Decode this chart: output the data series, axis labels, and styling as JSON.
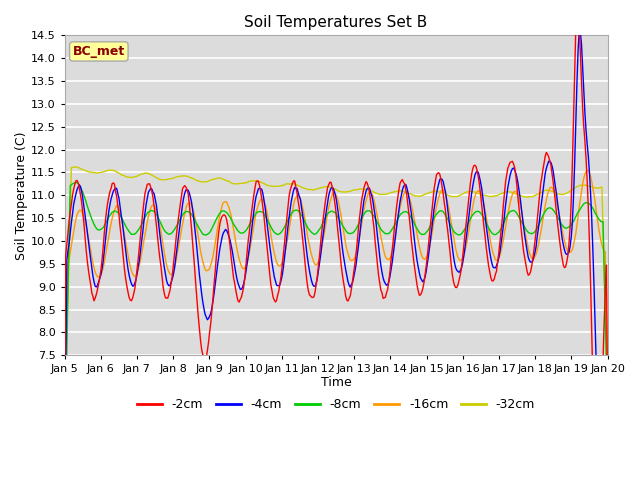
{
  "title": "Soil Temperatures Set B",
  "xlabel": "Time",
  "ylabel": "Soil Temperature (C)",
  "ylim": [
    7.5,
    14.5
  ],
  "annotation": "BC_met",
  "colors": {
    "-2cm": "#ff0000",
    "-4cm": "#0000ff",
    "-8cm": "#00cc00",
    "-16cm": "#ff9900",
    "-32cm": "#cccc00"
  },
  "legend_labels": [
    "-2cm",
    "-4cm",
    "-8cm",
    "-16cm",
    "-32cm"
  ],
  "plot_bg_color": "#dcdcdc",
  "grid_color": "#ffffff",
  "xtick_positions": [
    5,
    6,
    7,
    8,
    9,
    10,
    11,
    12,
    13,
    14,
    15,
    16,
    17,
    18,
    19,
    20
  ],
  "xtick_labels": [
    "Jan 5",
    "Jan 6",
    "Jan 7",
    "Jan 8",
    "Jan 9",
    "Jan 10",
    "Jan 11",
    "Jan 12",
    "Jan 13",
    "Jan 14",
    "Jan 15",
    "Jan 16",
    "Jan 17",
    "Jan 18",
    "Jan 19",
    "Jan 20"
  ],
  "ytick_positions": [
    7.5,
    8.0,
    8.5,
    9.0,
    9.5,
    10.0,
    10.5,
    11.0,
    11.5,
    12.0,
    12.5,
    13.0,
    13.5,
    14.0,
    14.5
  ]
}
